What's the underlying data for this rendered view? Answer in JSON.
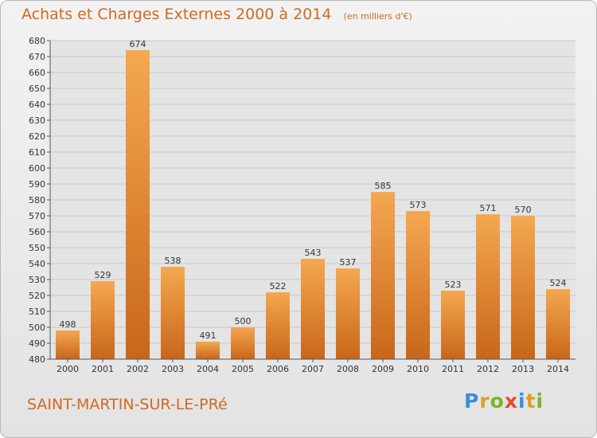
{
  "header": {
    "title": "Achats et Charges Externes 2000 à 2014",
    "subtitle": "(en milliers d'€)"
  },
  "footer": {
    "commune": "SAINT-MARTIN-SUR-LE-PRé",
    "logo": [
      "P",
      "r",
      "o",
      "x",
      "i",
      "t",
      "i"
    ]
  },
  "colors": {
    "bar_dark": "#c8661a",
    "bar_light": "#f4a850",
    "accent_text": "#d2691e",
    "grid": "#c8c8c8",
    "plot_bg": "#e4e4e4"
  },
  "chart_data": {
    "type": "bar",
    "title": "Achats et Charges Externes 2000 à 2014",
    "subtitle": "(en milliers d'€)",
    "categories": [
      "2000",
      "2001",
      "2002",
      "2003",
      "2004",
      "2005",
      "2006",
      "2007",
      "2008",
      "2009",
      "2010",
      "2011",
      "2012",
      "2013",
      "2014"
    ],
    "values": [
      498,
      529,
      674,
      538,
      491,
      500,
      522,
      543,
      537,
      585,
      573,
      523,
      571,
      570,
      524
    ],
    "ylim": [
      480,
      680
    ],
    "ytick_step": 10,
    "grid": true,
    "data_labels": true
  }
}
